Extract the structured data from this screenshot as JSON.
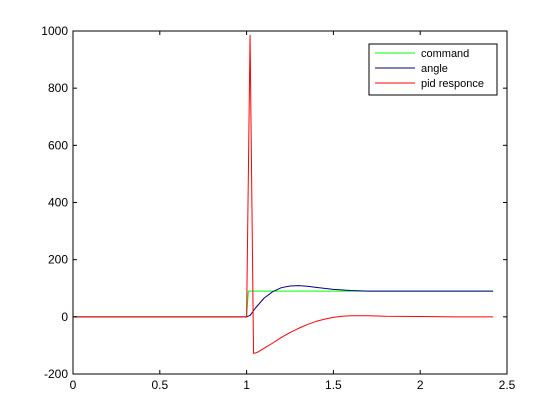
{
  "chart_data": {
    "type": "line",
    "title": "",
    "xlabel": "",
    "ylabel": "",
    "xlim": [
      0,
      2.5
    ],
    "ylim": [
      -200,
      1000
    ],
    "xticks": [
      0,
      0.5,
      1,
      1.5,
      2,
      2.5
    ],
    "yticks": [
      -200,
      0,
      200,
      400,
      600,
      800,
      1000
    ],
    "xtick_labels": [
      "0",
      "0.5",
      "1",
      "1.5",
      "2",
      "2.5"
    ],
    "ytick_labels": [
      "-200",
      "0",
      "200",
      "400",
      "600",
      "800",
      "1000"
    ],
    "grid": false,
    "legend_position": "top-right",
    "series": [
      {
        "name": "command",
        "color": "#00ff00",
        "x": [
          0,
          1.0,
          1.01,
          1.02,
          2.42
        ],
        "y": [
          0,
          0,
          90,
          90,
          90
        ]
      },
      {
        "name": "angle",
        "color": "#00008b",
        "x": [
          0,
          1.0,
          1.02,
          1.05,
          1.1,
          1.15,
          1.2,
          1.25,
          1.3,
          1.35,
          1.4,
          1.5,
          1.6,
          1.7,
          1.8,
          2.0,
          2.2,
          2.42
        ],
        "y": [
          0,
          0,
          5,
          30,
          65,
          88,
          102,
          108,
          109,
          107,
          103,
          96,
          92,
          90,
          90,
          90,
          90,
          90
        ]
      },
      {
        "name": "pid responce",
        "color": "#ff0000",
        "x": [
          0,
          1.0,
          1.02,
          1.04,
          1.06,
          1.1,
          1.15,
          1.2,
          1.25,
          1.3,
          1.35,
          1.4,
          1.45,
          1.5,
          1.55,
          1.6,
          1.7,
          1.8,
          2.0,
          2.2,
          2.42
        ],
        "y": [
          0,
          0,
          985,
          -128,
          -125,
          -110,
          -92,
          -72,
          -55,
          -40,
          -27,
          -16,
          -8,
          -2,
          2,
          4,
          4,
          2,
          1,
          0,
          0
        ]
      }
    ]
  }
}
